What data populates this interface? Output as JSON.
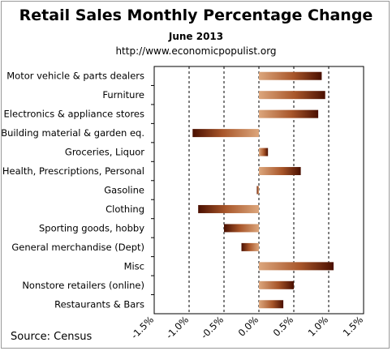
{
  "chart_data": {
    "type": "bar",
    "orientation": "horizontal",
    "title": "Retail Sales Monthly  Percentage Change",
    "subtitle": "June 2013",
    "url": "http://www.economicpopulist.org",
    "source": "Source:  Census",
    "categories": [
      "Motor vehicle & parts dealers",
      "Furniture",
      "Electronics & appliance stores",
      "Building material & garden eq.",
      "Groceries, Liquor",
      "Health, Prescriptions, Personal",
      "Gasoline",
      "Clothing",
      "Sporting goods, hobby",
      "General merchandise (Dept)",
      "Misc",
      "Nonstore retailers (online)",
      "Restaurants & Bars"
    ],
    "values": [
      0.9,
      0.95,
      0.85,
      -0.95,
      0.13,
      0.6,
      -0.03,
      -0.87,
      -0.5,
      -0.25,
      1.07,
      0.5,
      0.35
    ],
    "xlim": [
      -1.5,
      1.5
    ],
    "ticks": [
      "-1.5%",
      "-1.0%",
      "-0.5%",
      "0.0%",
      "0.5%",
      "1.0%",
      "1.5%"
    ],
    "grid": "vertical dashed",
    "colors": {
      "bar_light": "#d9a074",
      "bar_mid": "#a55224",
      "bar_dark": "#4a0f00"
    }
  }
}
